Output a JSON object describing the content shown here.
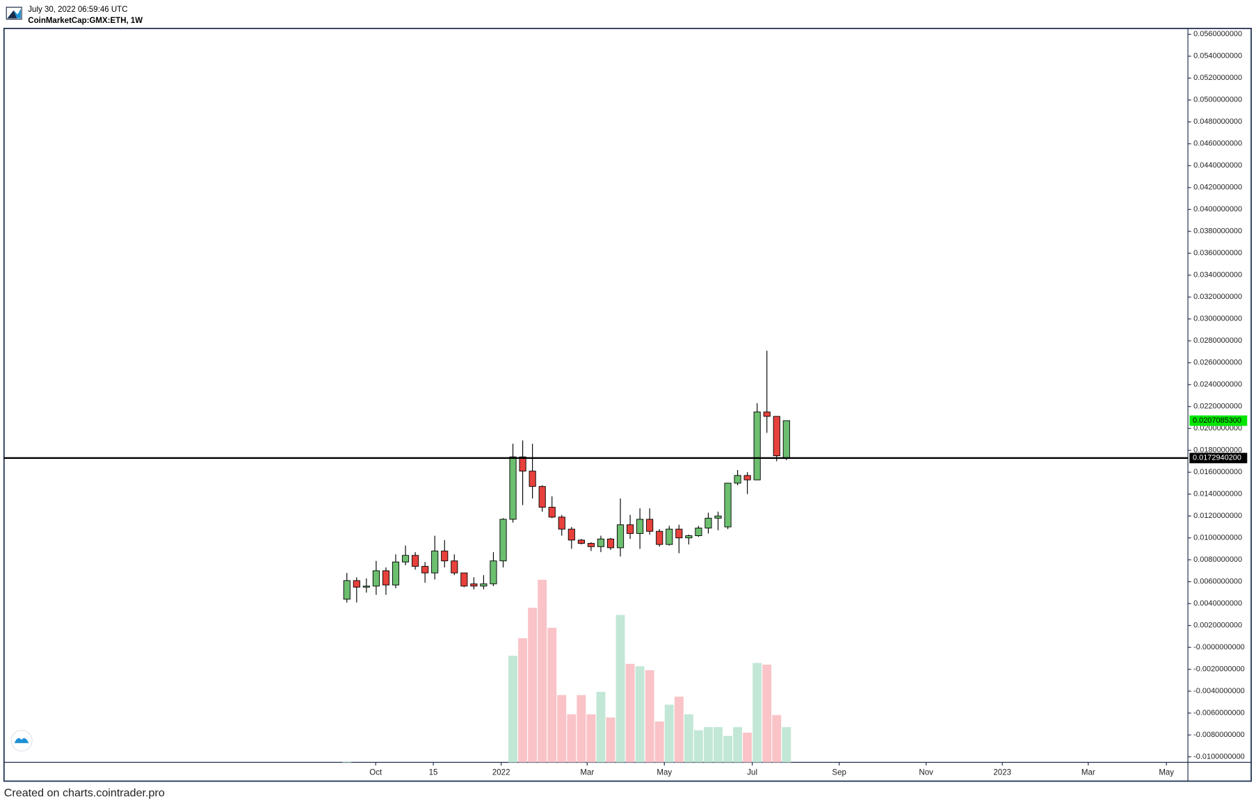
{
  "chart_data": {
    "type": "candlestick",
    "subtitle": "July 30, 2022 06:59:46 UTC",
    "title": "CoinMarketCap:GMX:ETH, 1W",
    "footer": "Created on charts.cointrader.pro",
    "open": [
      0.0044,
      0.0061,
      0.0055,
      0.0056,
      0.007,
      0.0057,
      0.0078,
      0.0084,
      0.0074,
      0.0068,
      0.0088,
      0.0079,
      0.0068,
      0.0058,
      0.0056,
      0.0058,
      0.0079,
      0.0117,
      0.0174,
      0.0161,
      0.0147,
      0.0128,
      0.0119,
      0.0108,
      0.0098,
      0.0095,
      0.0092,
      0.0099,
      0.0091,
      0.0112,
      0.0104,
      0.0117,
      0.0106,
      0.0094,
      0.0108,
      0.01,
      0.0102,
      0.0109,
      0.0118,
      0.011,
      0.015,
      0.0157,
      0.0153,
      0.0215,
      0.0211,
      0.0173
    ],
    "high": [
      0.0068,
      0.0064,
      0.0063,
      0.0079,
      0.0073,
      0.0085,
      0.0093,
      0.0087,
      0.0078,
      0.0102,
      0.0098,
      0.0085,
      0.0068,
      0.0064,
      0.0066,
      0.0087,
      0.0118,
      0.0186,
      0.0189,
      0.0186,
      0.0148,
      0.0138,
      0.0121,
      0.011,
      0.0099,
      0.0096,
      0.0102,
      0.01,
      0.0136,
      0.0121,
      0.0127,
      0.0127,
      0.0108,
      0.0111,
      0.0112,
      0.0103,
      0.0111,
      0.0123,
      0.0124,
      0.015,
      0.0162,
      0.016,
      0.0223,
      0.0271,
      0.0211,
      0.02070853
    ],
    "low": [
      0.0041,
      0.0041,
      0.005,
      0.0048,
      0.0048,
      0.0054,
      0.0075,
      0.0071,
      0.0059,
      0.0062,
      0.0073,
      0.0066,
      0.0055,
      0.0053,
      0.0053,
      0.0056,
      0.0073,
      0.0114,
      0.013,
      0.0136,
      0.0124,
      0.0118,
      0.0102,
      0.009,
      0.0094,
      0.0088,
      0.0087,
      0.0089,
      0.0083,
      0.0099,
      0.009,
      0.0103,
      0.0092,
      0.0093,
      0.0086,
      0.0094,
      0.0101,
      0.0104,
      0.0107,
      0.0108,
      0.0148,
      0.014,
      0.0153,
      0.0196,
      0.017,
      0.0171
    ],
    "close": [
      0.0061,
      0.0055,
      0.0056,
      0.007,
      0.0057,
      0.0078,
      0.0084,
      0.0074,
      0.0068,
      0.0088,
      0.0079,
      0.0068,
      0.0056,
      0.0056,
      0.0058,
      0.0079,
      0.0117,
      0.0174,
      0.0161,
      0.0147,
      0.0128,
      0.0119,
      0.0108,
      0.0098,
      0.0095,
      0.0092,
      0.0099,
      0.0091,
      0.0112,
      0.0104,
      0.0117,
      0.0106,
      0.0094,
      0.0108,
      0.01,
      0.0102,
      0.0109,
      0.0118,
      0.012,
      0.015,
      0.0157,
      0.0153,
      0.0215,
      0.0211,
      0.0175,
      0.02070853
    ],
    "volume": [
      1,
      0,
      0,
      0,
      0,
      0,
      0,
      0,
      0,
      0,
      0,
      0,
      0,
      0,
      0,
      0,
      0,
      133,
      155,
      193,
      228,
      168,
      84,
      60,
      84,
      60,
      88,
      56,
      184,
      123,
      120,
      115,
      51,
      72,
      82,
      60,
      40,
      44,
      44,
      33,
      44,
      37,
      124,
      122,
      59,
      44
    ],
    "volume_lim": [
      0,
      916
    ],
    "up_color": "#6cbf6f",
    "down_color": "#e8413c",
    "volume_up_color": "#c2e7d6",
    "volume_down_color": "#f9c3c7",
    "xlim": [
      -35.1,
      86.1
    ],
    "xticks": [
      {
        "value": 2.95,
        "label": "Oct"
      },
      {
        "value": 8.85,
        "label": "15"
      },
      {
        "value": 15.8,
        "label": "2022"
      },
      {
        "value": 24.6,
        "label": "Mar"
      },
      {
        "value": 32.5,
        "label": "May"
      },
      {
        "value": 41.5,
        "label": "Jul"
      },
      {
        "value": 50.4,
        "label": "Sep"
      },
      {
        "value": 59.3,
        "label": "Nov"
      },
      {
        "value": 67.1,
        "label": "2023"
      },
      {
        "value": 75.9,
        "label": "Mar"
      },
      {
        "value": 83.9,
        "label": "May"
      }
    ],
    "ylim": [
      -0.0105,
      0.0565
    ],
    "yticks": [
      {
        "value": 0.056,
        "label": "0.0560000000"
      },
      {
        "value": 0.054,
        "label": "0.0540000000"
      },
      {
        "value": 0.052,
        "label": "0.0520000000"
      },
      {
        "value": 0.05,
        "label": "0.0500000000"
      },
      {
        "value": 0.048,
        "label": "0.0480000000"
      },
      {
        "value": 0.046,
        "label": "0.0460000000"
      },
      {
        "value": 0.044,
        "label": "0.0440000000"
      },
      {
        "value": 0.042,
        "label": "0.0420000000"
      },
      {
        "value": 0.04,
        "label": "0.0400000000"
      },
      {
        "value": 0.038,
        "label": "0.0380000000"
      },
      {
        "value": 0.036,
        "label": "0.0360000000"
      },
      {
        "value": 0.034,
        "label": "0.0340000000"
      },
      {
        "value": 0.032,
        "label": "0.0320000000"
      },
      {
        "value": 0.03,
        "label": "0.0300000000"
      },
      {
        "value": 0.028,
        "label": "0.0280000000"
      },
      {
        "value": 0.026,
        "label": "0.0260000000"
      },
      {
        "value": 0.024,
        "label": "0.0240000000"
      },
      {
        "value": 0.022,
        "label": "0.0220000000"
      },
      {
        "value": 0.02,
        "label": "0.0200000000"
      },
      {
        "value": 0.018,
        "label": "0.0180000000"
      },
      {
        "value": 0.016,
        "label": "0.0160000000"
      },
      {
        "value": 0.014,
        "label": "0.0140000000"
      },
      {
        "value": 0.012,
        "label": "0.0120000000"
      },
      {
        "value": 0.01,
        "label": "0.0100000000"
      },
      {
        "value": 0.008,
        "label": "0.0080000000"
      },
      {
        "value": 0.006,
        "label": "0.0060000000"
      },
      {
        "value": 0.004,
        "label": "0.0040000000"
      },
      {
        "value": 0.002,
        "label": "0.0020000000"
      },
      {
        "value": 0,
        "label": "-0.0000000000"
      },
      {
        "value": -0.002,
        "label": "-0.0020000000"
      },
      {
        "value": -0.004,
        "label": "-0.0040000000"
      },
      {
        "value": -0.006,
        "label": "-0.0060000000"
      },
      {
        "value": -0.008,
        "label": "-0.0080000000"
      },
      {
        "value": -0.01,
        "label": "-0.0100000000"
      }
    ],
    "horizontal_line": {
      "value": 0.01729402,
      "label": "0.0172940200",
      "color": "#000000"
    },
    "last_price": {
      "value": 0.02070853,
      "label": "0.0207085300",
      "color": "#00e600"
    }
  }
}
